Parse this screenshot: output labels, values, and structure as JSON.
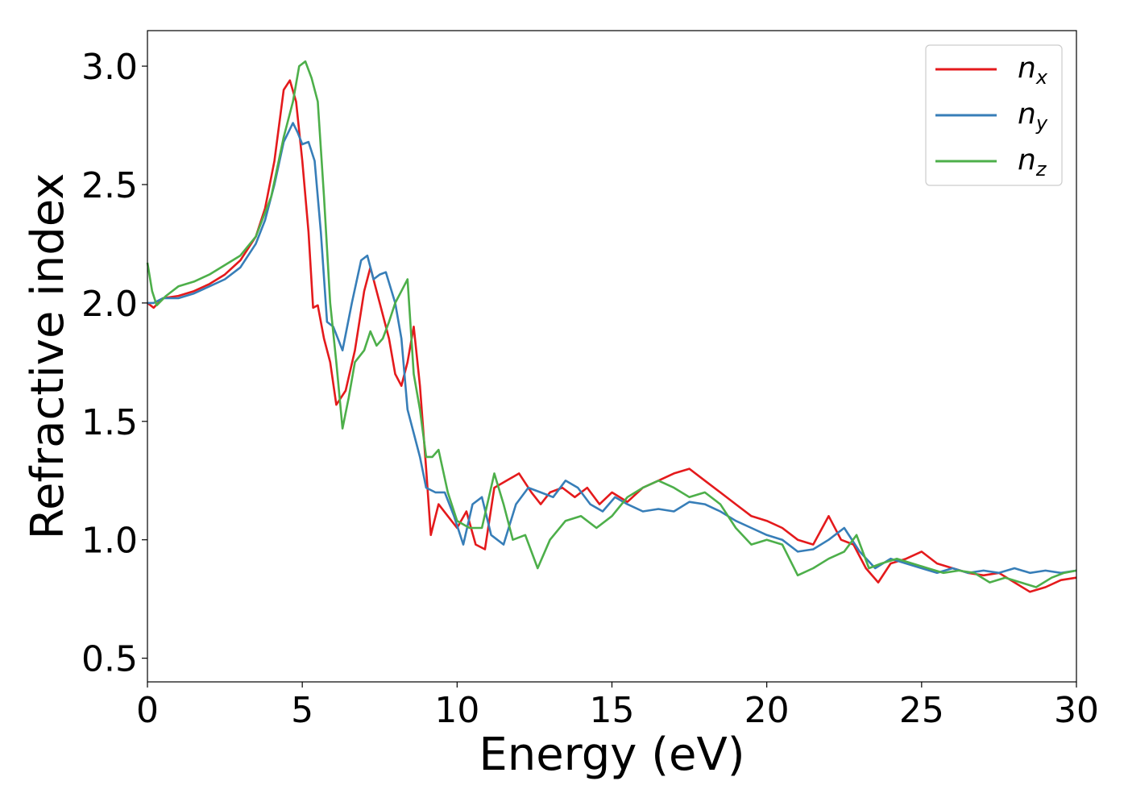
{
  "chart_data": {
    "type": "line",
    "title": "",
    "xlabel": "Energy (eV)",
    "ylabel": "Refractive index",
    "xlim": [
      0,
      30
    ],
    "ylim": [
      0.4,
      3.15
    ],
    "xticks": [
      0,
      5,
      10,
      15,
      20,
      25,
      30
    ],
    "xtick_labels": [
      "0",
      "5",
      "10",
      "15",
      "20",
      "25",
      "30"
    ],
    "yticks": [
      0.5,
      1.0,
      1.5,
      2.0,
      2.5,
      3.0
    ],
    "ytick_labels": [
      "0.5",
      "1.0",
      "1.5",
      "2.0",
      "2.5",
      "3.0"
    ],
    "grid": false,
    "legend_position": "top-right",
    "series": [
      {
        "name": "n_x",
        "name_main": "n",
        "name_sub": "x",
        "color": "#e41a1c",
        "x": [
          0,
          0.2,
          0.5,
          1,
          1.5,
          2,
          2.5,
          3,
          3.5,
          3.8,
          4.1,
          4.4,
          4.6,
          4.8,
          5.0,
          5.2,
          5.35,
          5.5,
          5.7,
          5.9,
          6.1,
          6.4,
          6.7,
          7.0,
          7.2,
          7.5,
          7.8,
          8.0,
          8.2,
          8.4,
          8.6,
          8.8,
          9.0,
          9.15,
          9.4,
          9.7,
          10.0,
          10.3,
          10.6,
          10.9,
          11.2,
          11.6,
          12.0,
          12.4,
          12.7,
          13.0,
          13.4,
          13.8,
          14.2,
          14.6,
          15.0,
          15.5,
          16.0,
          16.5,
          17.0,
          17.5,
          18.0,
          18.5,
          19.0,
          19.5,
          20.0,
          20.5,
          21.0,
          21.5,
          22.0,
          22.4,
          22.8,
          23.2,
          23.6,
          24.0,
          24.5,
          25.0,
          25.5,
          26.0,
          26.5,
          27.0,
          27.5,
          28.0,
          28.5,
          29.0,
          29.5,
          30.0
        ],
        "y": [
          2.0,
          1.98,
          2.02,
          2.03,
          2.05,
          2.08,
          2.12,
          2.18,
          2.28,
          2.4,
          2.6,
          2.9,
          2.94,
          2.85,
          2.6,
          2.3,
          1.98,
          1.99,
          1.85,
          1.75,
          1.57,
          1.63,
          1.8,
          2.05,
          2.15,
          2.0,
          1.85,
          1.7,
          1.65,
          1.75,
          1.9,
          1.65,
          1.3,
          1.02,
          1.15,
          1.1,
          1.05,
          1.12,
          0.98,
          0.96,
          1.22,
          1.25,
          1.28,
          1.2,
          1.15,
          1.2,
          1.22,
          1.18,
          1.22,
          1.15,
          1.2,
          1.16,
          1.22,
          1.25,
          1.28,
          1.3,
          1.25,
          1.2,
          1.15,
          1.1,
          1.08,
          1.05,
          1.0,
          0.98,
          1.1,
          1.0,
          0.98,
          0.88,
          0.82,
          0.9,
          0.92,
          0.95,
          0.9,
          0.88,
          0.86,
          0.85,
          0.86,
          0.82,
          0.78,
          0.8,
          0.83,
          0.84
        ]
      },
      {
        "name": "n_y",
        "name_main": "n",
        "name_sub": "y",
        "color": "#377eb8",
        "x": [
          0,
          0.2,
          0.5,
          1,
          1.5,
          2,
          2.5,
          3,
          3.5,
          3.8,
          4.1,
          4.4,
          4.7,
          4.85,
          5.0,
          5.2,
          5.4,
          5.6,
          5.8,
          6.0,
          6.3,
          6.6,
          6.9,
          7.1,
          7.3,
          7.5,
          7.7,
          8.0,
          8.2,
          8.4,
          8.6,
          8.8,
          9.0,
          9.3,
          9.6,
          9.9,
          10.2,
          10.5,
          10.8,
          11.1,
          11.5,
          11.9,
          12.3,
          12.7,
          13.1,
          13.5,
          13.9,
          14.3,
          14.7,
          15.1,
          15.5,
          16.0,
          16.5,
          17.0,
          17.5,
          18.0,
          18.5,
          19.0,
          19.5,
          20.0,
          20.5,
          21.0,
          21.5,
          22.0,
          22.5,
          23.0,
          23.5,
          24.0,
          24.5,
          25.0,
          25.5,
          26.0,
          26.5,
          27.0,
          27.5,
          28.0,
          28.5,
          29.0,
          29.5,
          30.0
        ],
        "y": [
          2.0,
          2.0,
          2.02,
          2.02,
          2.04,
          2.07,
          2.1,
          2.15,
          2.25,
          2.35,
          2.5,
          2.68,
          2.76,
          2.72,
          2.67,
          2.68,
          2.6,
          2.3,
          1.92,
          1.9,
          1.8,
          2.0,
          2.18,
          2.2,
          2.1,
          2.12,
          2.13,
          2.0,
          1.85,
          1.55,
          1.45,
          1.35,
          1.22,
          1.2,
          1.2,
          1.1,
          0.98,
          1.15,
          1.18,
          1.02,
          0.98,
          1.15,
          1.22,
          1.2,
          1.18,
          1.25,
          1.22,
          1.15,
          1.12,
          1.18,
          1.15,
          1.12,
          1.13,
          1.12,
          1.16,
          1.15,
          1.12,
          1.08,
          1.05,
          1.02,
          1.0,
          0.95,
          0.96,
          1.0,
          1.05,
          0.95,
          0.88,
          0.92,
          0.9,
          0.88,
          0.86,
          0.88,
          0.86,
          0.87,
          0.86,
          0.88,
          0.86,
          0.87,
          0.86,
          0.87
        ]
      },
      {
        "name": "n_z",
        "name_main": "n",
        "name_sub": "z",
        "color": "#4daf4a",
        "x": [
          0,
          0.15,
          0.3,
          0.6,
          1,
          1.5,
          2,
          2.5,
          3,
          3.5,
          4.0,
          4.4,
          4.7,
          4.9,
          5.1,
          5.3,
          5.5,
          5.7,
          5.9,
          6.1,
          6.3,
          6.5,
          6.7,
          7.0,
          7.2,
          7.4,
          7.6,
          7.8,
          8.0,
          8.2,
          8.4,
          8.6,
          8.8,
          9.0,
          9.2,
          9.4,
          9.7,
          10.0,
          10.4,
          10.8,
          11.2,
          11.5,
          11.8,
          12.2,
          12.6,
          13.0,
          13.5,
          14.0,
          14.5,
          15.0,
          15.5,
          16.0,
          16.5,
          17.0,
          17.5,
          18.0,
          18.5,
          19.0,
          19.5,
          20.0,
          20.5,
          21.0,
          21.5,
          22.0,
          22.5,
          22.9,
          23.3,
          23.7,
          24.2,
          24.7,
          25.2,
          25.7,
          26.2,
          26.7,
          27.2,
          27.7,
          28.2,
          28.7,
          29.2,
          29.6,
          30.0
        ],
        "y": [
          2.17,
          2.05,
          1.99,
          2.03,
          2.07,
          2.09,
          2.12,
          2.16,
          2.2,
          2.28,
          2.45,
          2.7,
          2.85,
          3.0,
          3.02,
          2.95,
          2.85,
          2.45,
          2.0,
          1.75,
          1.47,
          1.6,
          1.75,
          1.8,
          1.88,
          1.82,
          1.85,
          1.92,
          2.0,
          2.05,
          2.1,
          1.7,
          1.55,
          1.35,
          1.35,
          1.38,
          1.2,
          1.08,
          1.05,
          1.05,
          1.28,
          1.15,
          1.0,
          1.02,
          0.88,
          1.0,
          1.08,
          1.1,
          1.05,
          1.1,
          1.18,
          1.22,
          1.25,
          1.22,
          1.18,
          1.2,
          1.15,
          1.05,
          0.98,
          1.0,
          0.98,
          0.85,
          0.88,
          0.92,
          0.95,
          1.02,
          0.88,
          0.9,
          0.92,
          0.9,
          0.88,
          0.86,
          0.87,
          0.86,
          0.82,
          0.84,
          0.82,
          0.8,
          0.84,
          0.86,
          0.87
        ]
      }
    ]
  }
}
